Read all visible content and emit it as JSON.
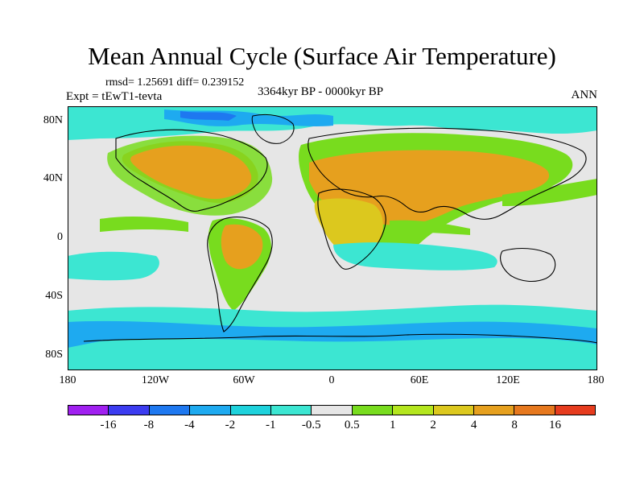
{
  "title": "Mean Annual Cycle (Surface Air Temperature)",
  "stats": "rmsd= 1.25691 diff= 0.239152",
  "experiment": "Expt = tEwT1-tevta",
  "period": "3364kyr BP - 0000kyr BP",
  "season": "ANN",
  "lat_labels": [
    "80N",
    "40N",
    "0",
    "40S",
    "80S"
  ],
  "lon_labels": [
    "180",
    "120W",
    "60W",
    "0",
    "60E",
    "120E",
    "180"
  ],
  "colorbar": {
    "colors": [
      "#a020f0",
      "#3c3cf0",
      "#1e78f0",
      "#1eaaf0",
      "#1ed2dc",
      "#3ce6d2",
      "#e6e6e6",
      "#78dc1e",
      "#b4e61e",
      "#dcc81e",
      "#e6a01e",
      "#e6781e",
      "#e63c1e"
    ],
    "labels": [
      "-16",
      "-8",
      "-4",
      "-2",
      "-1",
      "-0.5",
      "0.5",
      "1",
      "2",
      "4",
      "8",
      "16"
    ]
  }
}
